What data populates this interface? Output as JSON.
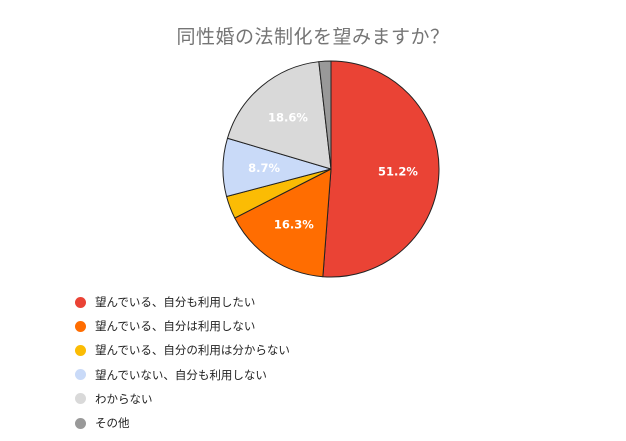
{
  "chart_data": {
    "type": "pie",
    "title": "同性婚の法制化を望みますか？",
    "slices": [
      {
        "label": "望んでいる、自分も利用したい",
        "value": 51.2,
        "color": "#EA4335",
        "display": "51.2%"
      },
      {
        "label": "望んでいる、自分は利用しない",
        "value": 16.3,
        "color": "#FF6D01",
        "display": "16.3%"
      },
      {
        "label": "望んでいる、自分の利用は分からない",
        "value": 3.4,
        "color": "#FBBC04",
        "display": ""
      },
      {
        "label": "望んでいない、自分も利用しない",
        "value": 8.7,
        "color": "#C9DAF8",
        "display": "8.7%"
      },
      {
        "label": "わからない",
        "value": 18.6,
        "color": "#D9D9D9",
        "display": "18.6%"
      },
      {
        "label": "その他",
        "value": 1.8,
        "color": "#999999",
        "display": ""
      }
    ],
    "legend_position": "bottom-left"
  }
}
